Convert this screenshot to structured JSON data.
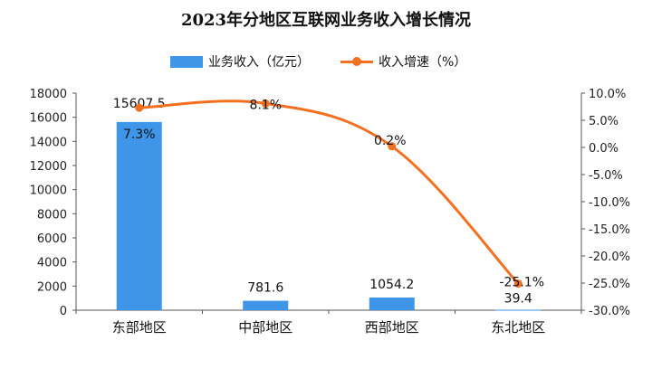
{
  "chart_data": {
    "type": "bar",
    "title": "2023年分地区互联网业务收入增长情况",
    "categories": [
      "东部地区",
      "中部地区",
      "西部地区",
      "东北地区"
    ],
    "series": [
      {
        "name": "业务收入（亿元）",
        "type": "bar",
        "axis": "left",
        "values": [
          15607.5,
          781.6,
          1054.2,
          39.4
        ],
        "color": "#3f96e8"
      },
      {
        "name": "收入增速（%）",
        "type": "line",
        "axis": "right",
        "values": [
          7.3,
          8.1,
          0.2,
          -25.1
        ],
        "color": "#f37021"
      }
    ],
    "left_axis": {
      "min": 0,
      "max": 18000,
      "ticks": [
        "0",
        "2000",
        "4000",
        "6000",
        "8000",
        "10000",
        "12000",
        "14000",
        "16000",
        "18000"
      ]
    },
    "right_axis": {
      "min": -30,
      "max": 10,
      "ticks": [
        "-30.0%",
        "-25.0%",
        "-20.0%",
        "-15.0%",
        "-10.0%",
        "-5.0%",
        "0.0%",
        "5.0%",
        "10.0%"
      ]
    },
    "bar_labels": [
      "15607.5",
      "781.6",
      "1054.2",
      "39.4"
    ],
    "line_labels": [
      "7.3%",
      "8.1%",
      "0.2%",
      "-25.1%"
    ],
    "grid": false,
    "legend_position": "top-center"
  }
}
